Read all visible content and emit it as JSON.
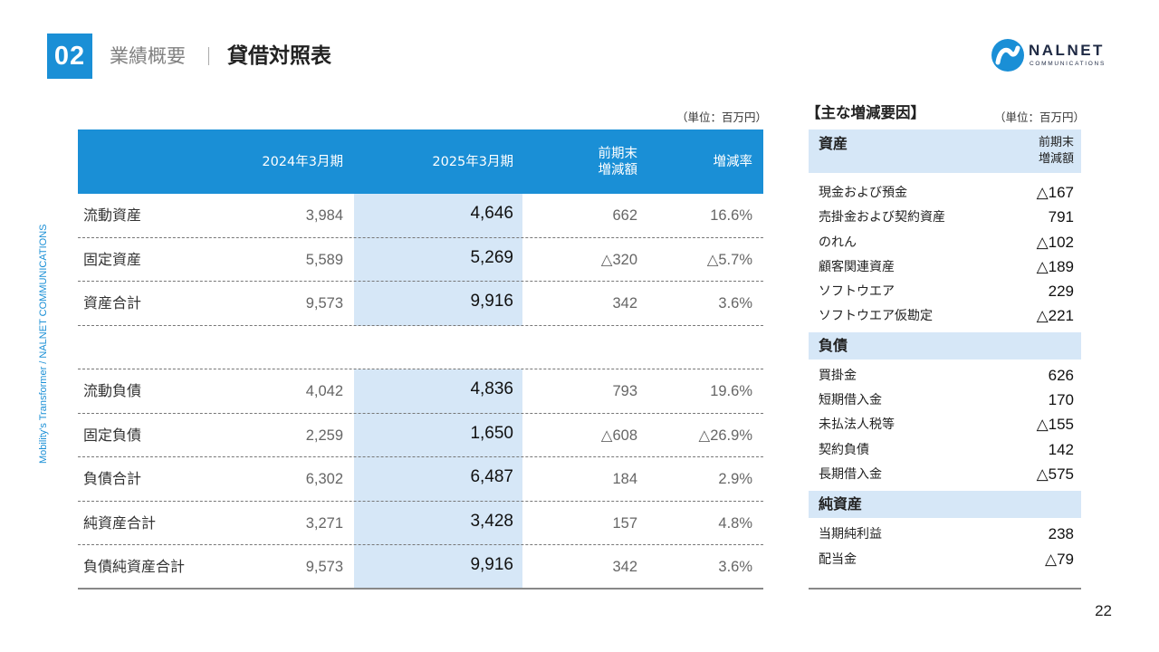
{
  "header": {
    "section_number": "02",
    "subtitle": "業績概要",
    "title": "貸借対照表"
  },
  "logo": {
    "name": "NALNET",
    "sub": "COMMUNICATIONS"
  },
  "side_text": "Mobility's Transformer / NALNET COMMUNICATIONS",
  "main_table": {
    "unit": "（単位：百万円）",
    "columns": [
      "2024年3月期",
      "2025年3月期",
      "前期末\n増減額",
      "増減率"
    ],
    "col3_line1": "前期末",
    "col3_line2": "増減額",
    "rows": [
      {
        "label": "流動資産",
        "v2024": "3,984",
        "v2025": "4,646",
        "change": "662",
        "rate": "16.6%"
      },
      {
        "label": "固定資産",
        "v2024": "5,589",
        "v2025": "5,269",
        "change": "△320",
        "rate": "△5.7%"
      },
      {
        "label": "資産合計",
        "v2024": "9,573",
        "v2025": "9,916",
        "change": "342",
        "rate": "3.6%"
      },
      {
        "label": "流動負債",
        "v2024": "4,042",
        "v2025": "4,836",
        "change": "793",
        "rate": "19.6%"
      },
      {
        "label": "固定負債",
        "v2024": "2,259",
        "v2025": "1,650",
        "change": "△608",
        "rate": "△26.9%"
      },
      {
        "label": "負債合計",
        "v2024": "6,302",
        "v2025": "6,487",
        "change": "184",
        "rate": "2.9%"
      },
      {
        "label": "純資産合計",
        "v2024": "3,271",
        "v2025": "3,428",
        "change": "157",
        "rate": "4.8%"
      },
      {
        "label": "負債純資産合計",
        "v2024": "9,573",
        "v2025": "9,916",
        "change": "342",
        "rate": "3.6%"
      }
    ]
  },
  "factors": {
    "title": "【主な増減要因】",
    "unit": "（単位：百万円）",
    "header_line1": "前期末",
    "header_line2": "増減額",
    "categories": [
      {
        "label": "資産",
        "items": [
          {
            "name": "現金および預金",
            "value": "△167"
          },
          {
            "name": "売掛金および契約資産",
            "value": "791"
          },
          {
            "name": "のれん",
            "value": "△102"
          },
          {
            "name": "顧客関連資産",
            "value": "△189"
          },
          {
            "name": "ソフトウエア",
            "value": "229"
          },
          {
            "name": "ソフトウエア仮勘定",
            "value": "△221"
          }
        ]
      },
      {
        "label": "負債",
        "items": [
          {
            "name": "買掛金",
            "value": "626"
          },
          {
            "name": "短期借入金",
            "value": "170"
          },
          {
            "name": "未払法人税等",
            "value": "△155"
          },
          {
            "name": "契約負債",
            "value": "142"
          },
          {
            "name": "長期借入金",
            "value": "△575"
          }
        ]
      },
      {
        "label": "純資産",
        "items": [
          {
            "name": "当期純利益",
            "value": "238"
          },
          {
            "name": "配当金",
            "value": "△79"
          }
        ]
      }
    ]
  },
  "page_number": "22",
  "colors": {
    "accent": "#1a8fd6",
    "highlight": "#d6e7f7"
  }
}
